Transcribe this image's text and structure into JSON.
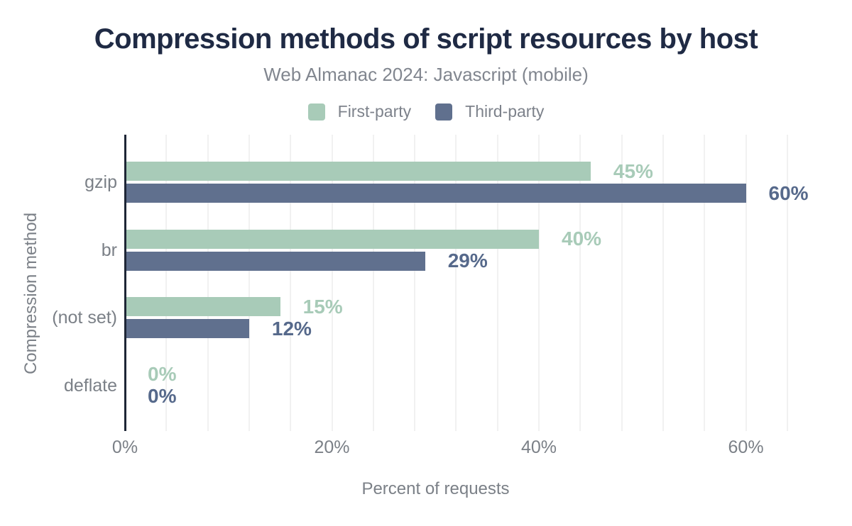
{
  "header": {
    "title": "Compression methods of script resources by host",
    "subtitle": "Web Almanac 2024: Javascript (mobile)"
  },
  "legend": [
    {
      "label": "First-party",
      "color": "#a8cbb8"
    },
    {
      "label": "Third-party",
      "color": "#60708e"
    }
  ],
  "colors": {
    "title_text": "#1f2a44",
    "muted_text": "#7b8087",
    "axis_line": "#1e2636",
    "gridline": "#f1f1f1",
    "background": "#ffffff"
  },
  "chart_data": {
    "type": "bar",
    "orientation": "horizontal",
    "title": "Compression methods of script resources by host",
    "subtitle": "Web Almanac 2024: Javascript (mobile)",
    "categories": [
      "gzip",
      "br",
      "(not set)",
      "deflate"
    ],
    "series": [
      {
        "name": "First-party",
        "color": "#a8cbb8",
        "label_color": "#a8cbb8",
        "values": [
          45,
          40,
          15,
          0
        ]
      },
      {
        "name": "Third-party",
        "color": "#60708e",
        "label_color": "#56698b",
        "values": [
          60,
          29,
          12,
          0
        ]
      }
    ],
    "value_suffix": "%",
    "xlabel": "Percent of requests",
    "ylabel": "Compression method",
    "xlim": [
      0,
      66
    ],
    "xticks": [
      0,
      20,
      40,
      60
    ],
    "xtick_labels": [
      "0%",
      "20%",
      "40%",
      "60%"
    ],
    "grid_interval": 4,
    "grid_on": true,
    "legend_position": "top",
    "data_labels": [
      "45%",
      "60%",
      "40%",
      "29%",
      "15%",
      "12%",
      "0%",
      "0%"
    ]
  }
}
